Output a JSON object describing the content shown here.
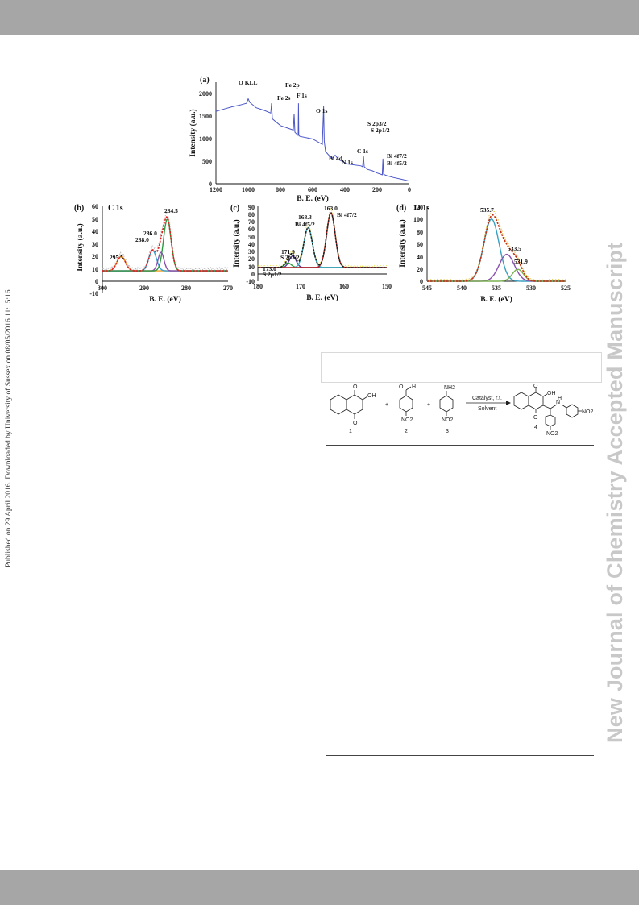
{
  "side_note": "Published on 29 April 2016. Downloaded by University of Sussex on 08/05/2016 11:15:16.",
  "watermark": "New Journal of Chemistry Accepted Manuscript",
  "figure": {
    "panel_a": {
      "panel_label": "(a)",
      "xlabel": "B. E. (eV)",
      "ylabel": "Intensity (a.u.)",
      "x_ticks": [
        "1200",
        "1000",
        "800",
        "600",
        "400",
        "200",
        "0"
      ],
      "y_ticks": [
        "0",
        "500",
        "1000",
        "1500",
        "2000"
      ],
      "peak_labels": [
        "O KLL",
        "Fe 2s",
        "Fe 2p",
        "F 1s",
        "O 1s",
        "Bi 4d",
        "N 1s",
        "C 1s",
        "S 2p3/2",
        "S 2p1/2",
        "Bi 4f7/2",
        "Bi 4f5/2"
      ]
    },
    "panel_b": {
      "panel_label": "(b)",
      "title": "C 1s",
      "xlabel": "B. E. (eV)",
      "ylabel": "Intensity (a.u.)",
      "x_ticks": [
        "300",
        "290",
        "280",
        "270"
      ],
      "y_ticks": [
        "-10",
        "0",
        "10",
        "20",
        "30",
        "40",
        "50",
        "60"
      ],
      "peak_labels": [
        "295.5",
        "288.0",
        "286.0",
        "284.5"
      ]
    },
    "panel_c": {
      "panel_label": "(c)",
      "xlabel": "B. E. (eV)",
      "ylabel": "Intensity (a.u.)",
      "x_ticks": [
        "180",
        "170",
        "160",
        "150"
      ],
      "y_ticks": [
        "-10",
        "0",
        "10",
        "20",
        "30",
        "40",
        "50",
        "60",
        "70",
        "80",
        "90"
      ],
      "peak_labels": [
        "173.0",
        "S 2p1/2",
        "171.9",
        "S 2p3/2",
        "168.3",
        "Bi 4f5/2",
        "163.0",
        "Bi 4f7/2"
      ]
    },
    "panel_d": {
      "panel_label": "(d)",
      "title": "O 1s",
      "xlabel": "B. E. (eV)",
      "ylabel": "Intensity (a.u.)",
      "x_ticks": [
        "545",
        "540",
        "535",
        "530",
        "525"
      ],
      "y_ticks": [
        "0",
        "20",
        "40",
        "60",
        "80",
        "100",
        "120"
      ],
      "peak_labels": [
        "535.7",
        "533.5",
        "531.9"
      ]
    }
  },
  "scheme": {
    "compound_labels": [
      "1",
      "2",
      "3",
      "4"
    ],
    "plus": "+",
    "arrow_top": "Catalyst, r.t.",
    "arrow_bottom": "Solvent",
    "groups": [
      "OH",
      "H",
      "NH2",
      "NO2",
      "NO2",
      "OH",
      "NO2",
      "NO2",
      "H",
      "N",
      "O",
      "O",
      "O",
      "O",
      "O"
    ]
  },
  "chart_data": [
    {
      "type": "line",
      "title": "",
      "xlabel": "B. E. (eV)",
      "ylabel": "Intensity (a.u.)",
      "xlim": [
        1200,
        0
      ],
      "ylim": [
        0,
        2200
      ],
      "series": [
        {
          "x": [
            1200,
            1150,
            1100,
            1050,
            1010,
            1000,
            990,
            950,
            900,
            860,
            855,
            850,
            800,
            720,
            715,
            710,
            690,
            688,
            686,
            680,
            600,
            540,
            532,
            528,
            520,
            480,
            460,
            440,
            410,
            400,
            380,
            300,
            290,
            285,
            280,
            260,
            230,
            200,
            168,
            164,
            160,
            140,
            100,
            50,
            0
          ],
          "y": [
            1620,
            1670,
            1720,
            1760,
            1800,
            1900,
            1820,
            1700,
            1640,
            1580,
            1800,
            1450,
            1300,
            1200,
            1560,
            1150,
            1080,
            1800,
            1100,
            1060,
            1000,
            880,
            1730,
            950,
            720,
            560,
            640,
            540,
            490,
            470,
            440,
            400,
            380,
            630,
            380,
            320,
            290,
            240,
            200,
            560,
            210,
            180,
            140,
            100,
            60
          ]
        }
      ]
    },
    {
      "type": "line",
      "title": "C 1s",
      "xlabel": "B. E. (eV)",
      "ylabel": "Intensity (a.u.)",
      "xlim": [
        300,
        270
      ],
      "ylim": [
        -10,
        60
      ],
      "peaks": [
        {
          "center": 295.5,
          "height": 14
        },
        {
          "center": 288.0,
          "height": 20
        },
        {
          "center": 286.0,
          "height": 18
        },
        {
          "center": 284.5,
          "height": 50
        }
      ]
    },
    {
      "type": "line",
      "title": "",
      "xlabel": "B. E. (eV)",
      "ylabel": "Intensity (a.u.)",
      "xlim": [
        180,
        150
      ],
      "ylim": [
        -10,
        90
      ],
      "peaks": [
        {
          "center": 173.0,
          "height": 7
        },
        {
          "center": 171.9,
          "height": 18
        },
        {
          "center": 168.3,
          "height": 62
        },
        {
          "center": 163.0,
          "height": 85
        }
      ]
    },
    {
      "type": "line",
      "title": "O 1s",
      "xlabel": "B. E. (eV)",
      "ylabel": "Intensity (a.u.)",
      "xlim": [
        545,
        525
      ],
      "ylim": [
        0,
        120
      ],
      "peaks": [
        {
          "center": 535.7,
          "height": 104
        },
        {
          "center": 533.5,
          "height": 45
        },
        {
          "center": 531.9,
          "height": 20
        }
      ]
    }
  ]
}
